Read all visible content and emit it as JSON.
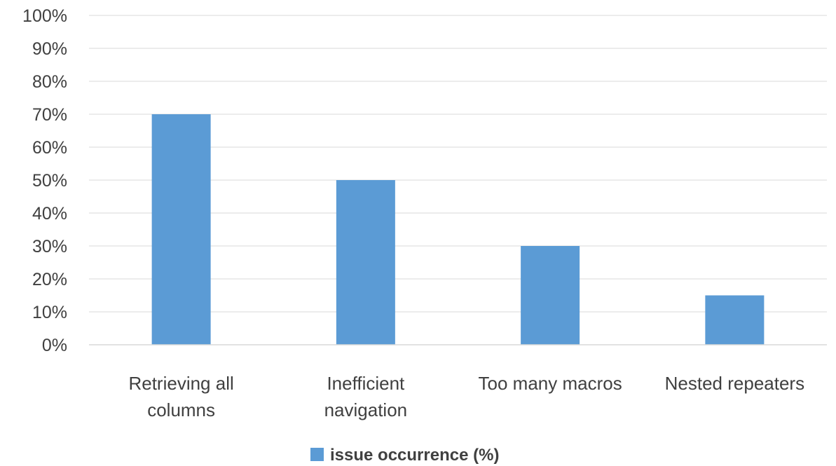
{
  "chart_data": {
    "type": "bar",
    "categories": [
      [
        "Retrieving all",
        "columns"
      ],
      [
        "Inefficient",
        "navigation"
      ],
      [
        "Too many macros"
      ],
      [
        "Nested repeaters"
      ]
    ],
    "series": [
      {
        "name": "issue occurrence (%)",
        "values": [
          70,
          50,
          30,
          15
        ],
        "color": "#5B9BD5"
      }
    ],
    "ylim": [
      0,
      100
    ],
    "yticks": [
      0,
      10,
      20,
      30,
      40,
      50,
      60,
      70,
      80,
      90,
      100
    ],
    "ytick_suffix": "%",
    "grid": true,
    "legend_position": "bottom",
    "title": "",
    "xlabel": "",
    "ylabel": ""
  }
}
